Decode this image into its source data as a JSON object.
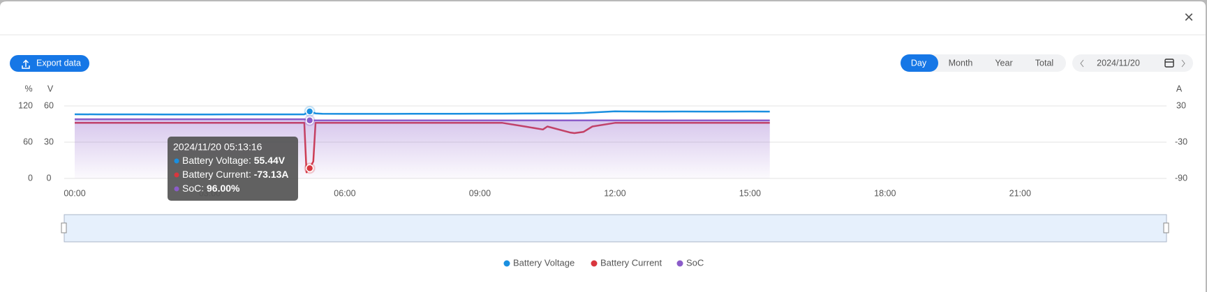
{
  "header": {
    "close": "×"
  },
  "toolbar": {
    "export": "Export data",
    "tabs": [
      "Day",
      "Month",
      "Year",
      "Total"
    ],
    "active_tab": 0,
    "date": "2024/11/20"
  },
  "chart_data": {
    "type": "line",
    "axis_labels": {
      "y3": "%",
      "y": "V",
      "y2": "A"
    },
    "x": [
      0,
      0.5,
      1,
      1.5,
      2,
      2.5,
      3,
      3.5,
      4,
      4.5,
      5,
      5.1,
      5.15,
      5.22,
      5.3,
      5.35,
      5.5,
      6,
      6.5,
      7,
      7.5,
      8,
      8.5,
      9,
      9.5,
      10,
      10.4,
      10.5,
      11,
      11.1,
      11.3,
      11.5,
      12,
      12.5,
      13,
      13.5,
      14,
      14.5,
      15,
      15.44
    ],
    "xlim": [
      0,
      24
    ],
    "xticks": [
      {
        "value": 0,
        "label": "00:00"
      },
      {
        "value": 3,
        "label": "03:00"
      },
      {
        "value": 6,
        "label": "06:00"
      },
      {
        "value": 9,
        "label": "09:00"
      },
      {
        "value": 12,
        "label": "12:00"
      },
      {
        "value": 15,
        "label": "15:00"
      },
      {
        "value": 18,
        "label": "18:00"
      },
      {
        "value": 21,
        "label": "21:00"
      }
    ],
    "ylim": [
      0,
      60
    ],
    "yticks": [
      0,
      30,
      60
    ],
    "y2lim": [
      -90,
      30
    ],
    "y2ticks": [
      -90,
      -30,
      30
    ],
    "y3lim": [
      0,
      120
    ],
    "y3ticks": [
      0,
      60,
      120
    ],
    "grid": true,
    "series": [
      {
        "name": "Battery Voltage",
        "color": "#1a8fe0",
        "axis": "y",
        "values": [
          53.1,
          53.0,
          53.0,
          53.0,
          52.9,
          52.9,
          52.9,
          53.0,
          53.0,
          53.0,
          53.0,
          53.0,
          54.2,
          55.44,
          54.5,
          53.8,
          53.5,
          53.4,
          53.4,
          53.4,
          53.5,
          53.5,
          53.5,
          53.6,
          53.6,
          53.7,
          53.8,
          53.8,
          53.9,
          54.0,
          54.2,
          54.6,
          55.5,
          55.4,
          55.3,
          55.4,
          55.3,
          55.3,
          55.4,
          55.3
        ]
      },
      {
        "name": "Battery Current",
        "color": "#d9363e",
        "axis": "y2",
        "values": [
          2,
          2,
          2,
          2,
          2,
          2,
          2,
          2,
          2,
          2,
          2,
          2,
          -80,
          -73.13,
          -62,
          2,
          2,
          2,
          2,
          2,
          2,
          2,
          2,
          2,
          2,
          -4,
          -9,
          -4,
          -14,
          -15,
          -13,
          -4,
          2,
          2,
          2,
          2,
          2,
          2,
          2,
          2
        ]
      },
      {
        "name": "SoC",
        "color": "#8b5cc9",
        "axis": "y3",
        "area": true,
        "values": [
          98,
          98,
          98,
          98,
          98,
          98,
          98,
          98,
          98,
          98,
          98,
          98,
          97,
          96,
          96,
          96,
          96,
          96,
          96,
          96,
          96,
          96,
          96,
          96,
          96,
          96,
          96,
          96,
          96,
          96,
          96,
          96,
          96,
          96,
          96,
          96,
          96,
          96,
          96,
          96
        ]
      }
    ]
  },
  "tooltip": {
    "index": 13,
    "title": "2024/11/20 05:13:16",
    "values": [
      "55.44V",
      "-73.13A",
      "96.00%"
    ]
  }
}
